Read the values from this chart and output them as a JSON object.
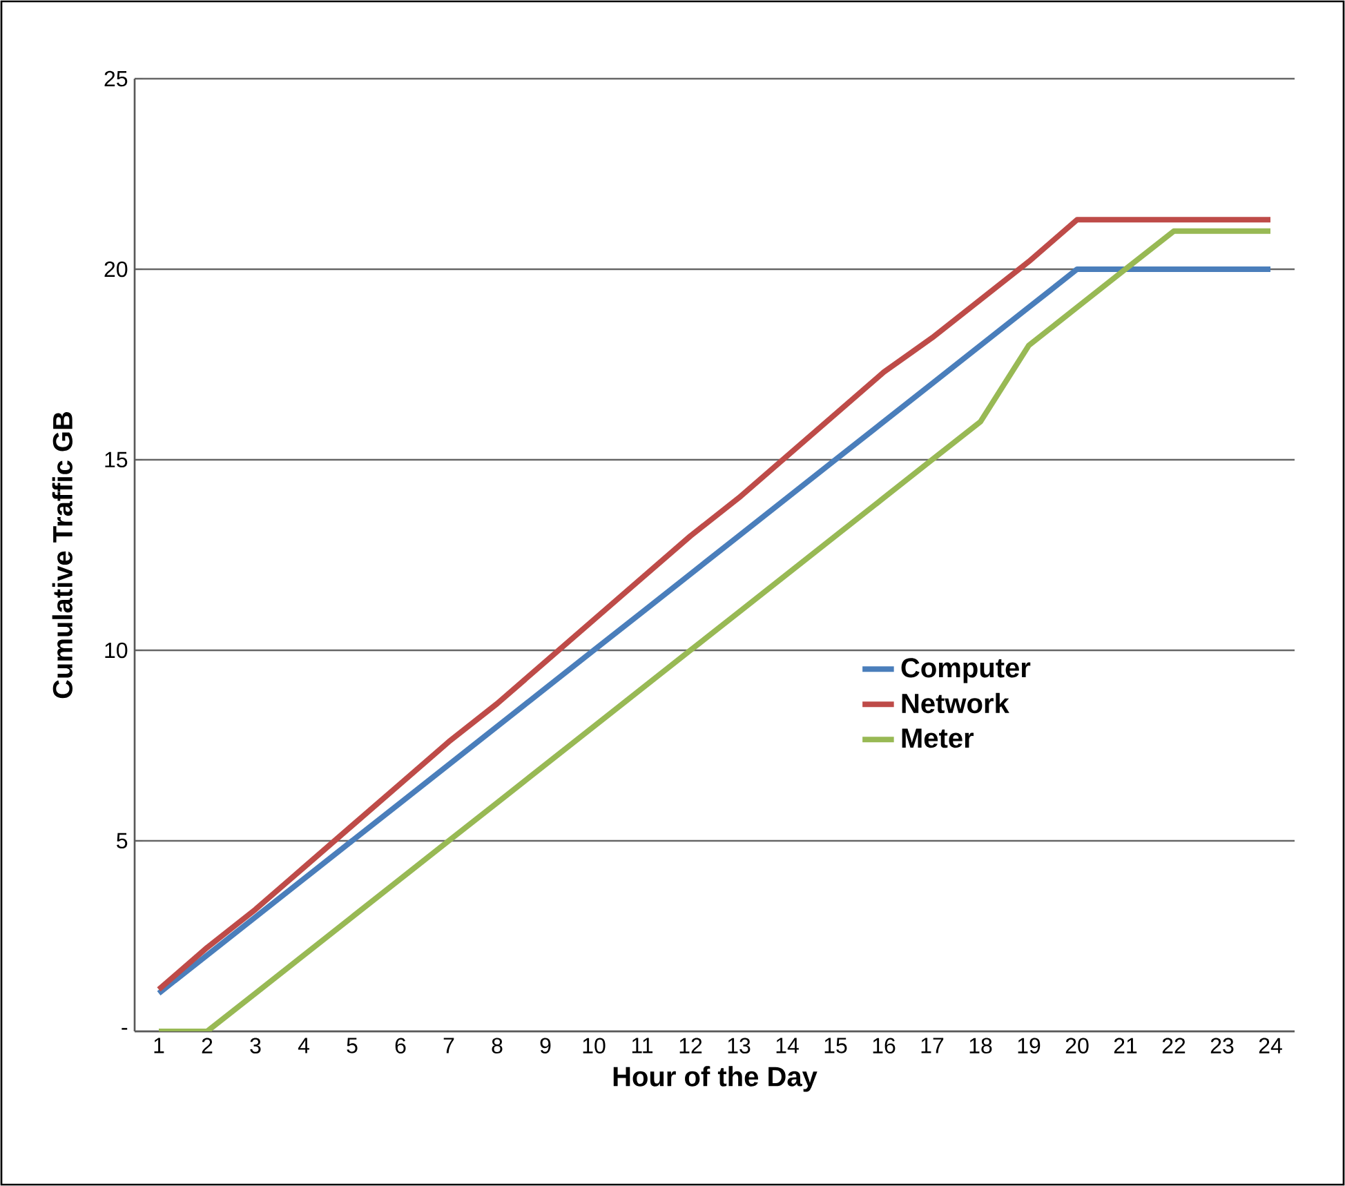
{
  "chart_data": {
    "type": "line",
    "xlabel": "Hour of the Day",
    "ylabel": "Cumulative Traffic GB",
    "categories": [
      "1",
      "2",
      "3",
      "4",
      "5",
      "6",
      "7",
      "8",
      "9",
      "10",
      "11",
      "12",
      "13",
      "14",
      "15",
      "16",
      "17",
      "18",
      "19",
      "20",
      "21",
      "22",
      "23",
      "24"
    ],
    "series": [
      {
        "name": "Computer",
        "color": "#4a7ebb",
        "values": [
          1,
          2,
          3,
          4,
          5,
          6,
          7,
          8,
          9,
          10,
          11,
          12,
          13,
          14,
          15,
          16,
          17,
          18,
          19,
          20,
          20,
          20,
          20,
          20
        ]
      },
      {
        "name": "Network",
        "color": "#be4b48",
        "values": [
          1.1,
          2.2,
          3.2,
          4.3,
          5.4,
          6.5,
          7.6,
          8.6,
          9.7,
          10.8,
          11.9,
          13.0,
          14.0,
          15.1,
          16.2,
          17.3,
          18.2,
          19.2,
          20.2,
          21.3,
          21.3,
          21.3,
          21.3,
          21.3
        ]
      },
      {
        "name": "Meter",
        "color": "#98b954",
        "values": [
          0,
          0,
          1,
          2,
          3,
          4,
          5,
          6,
          7,
          8,
          9,
          10,
          11,
          12,
          13,
          14,
          15,
          16,
          18,
          19,
          20,
          21,
          21,
          21
        ]
      }
    ],
    "ylim": [
      0,
      25
    ],
    "yticks": [
      {
        "value": 0,
        "label": "-"
      },
      5,
      10,
      15,
      20,
      25
    ],
    "grid": "y",
    "legend": "right",
    "marker": "none",
    "line_style": "solid"
  }
}
